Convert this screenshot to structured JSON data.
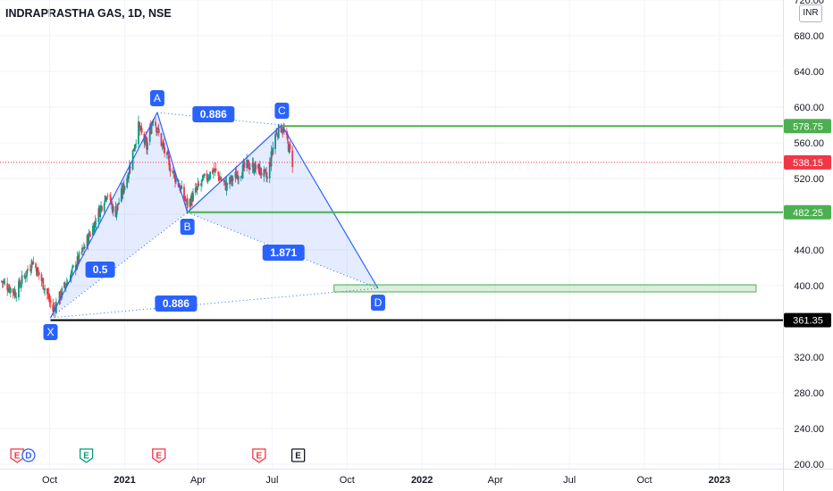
{
  "header": {
    "title": "INDRAPRASTHA GAS, 1D, NSE"
  },
  "currency_button": "INR",
  "chart_data": {
    "type": "candlestick",
    "y_axis": {
      "range": [
        195,
        720
      ],
      "ticks": [
        200,
        240,
        280,
        320,
        360,
        400,
        440,
        480,
        520,
        560,
        600,
        640,
        680,
        720
      ],
      "tick_labels": [
        "200.00",
        "240.00",
        "280.00",
        "320.00",
        "",
        "400.00",
        "440.00",
        "",
        "520.00",
        "560.00",
        "600.00",
        "640.00",
        "680.00",
        "720.00"
      ]
    },
    "x_axis": {
      "labels": [
        "Oct",
        "2021",
        "Apr",
        "Jul",
        "Oct",
        "2022",
        "Apr",
        "Jul",
        "Oct",
        "2023"
      ],
      "dates": [
        "2020-10-01",
        "2021-01-01",
        "2021-04-01",
        "2021-07-01",
        "2021-10-01",
        "2022-01-01",
        "2022-04-01",
        "2022-07-01",
        "2022-10-01",
        "2023-01-01"
      ],
      "range": [
        "2020-08-01",
        "2023-03-20"
      ]
    },
    "price_series_anchors": [
      {
        "date": "2020-08-03",
        "value": 405
      },
      {
        "date": "2020-08-20",
        "value": 392
      },
      {
        "date": "2020-09-10",
        "value": 428
      },
      {
        "date": "2020-09-25",
        "value": 398
      },
      {
        "date": "2020-10-05",
        "value": 372
      },
      {
        "date": "2020-10-20",
        "value": 400
      },
      {
        "date": "2020-11-10",
        "value": 438
      },
      {
        "date": "2020-11-25",
        "value": 470
      },
      {
        "date": "2020-12-10",
        "value": 505
      },
      {
        "date": "2020-12-20",
        "value": 480
      },
      {
        "date": "2021-01-05",
        "value": 525
      },
      {
        "date": "2021-01-18",
        "value": 578
      },
      {
        "date": "2021-01-28",
        "value": 555
      },
      {
        "date": "2021-02-05",
        "value": 590
      },
      {
        "date": "2021-02-15",
        "value": 560
      },
      {
        "date": "2021-02-25",
        "value": 535
      },
      {
        "date": "2021-03-10",
        "value": 510
      },
      {
        "date": "2021-03-19",
        "value": 490
      },
      {
        "date": "2021-04-05",
        "value": 515
      },
      {
        "date": "2021-04-20",
        "value": 530
      },
      {
        "date": "2021-05-05",
        "value": 512
      },
      {
        "date": "2021-05-20",
        "value": 525
      },
      {
        "date": "2021-06-01",
        "value": 535
      },
      {
        "date": "2021-06-15",
        "value": 530
      },
      {
        "date": "2021-06-25",
        "value": 520
      },
      {
        "date": "2021-07-05",
        "value": 570
      },
      {
        "date": "2021-07-13",
        "value": 578
      },
      {
        "date": "2021-07-20",
        "value": 560
      },
      {
        "date": "2021-07-26",
        "value": 538
      }
    ],
    "last_price": 538.15,
    "harmonic_pattern": {
      "points": [
        {
          "label": "X",
          "date": "2020-10-02",
          "value": 364
        },
        {
          "label": "A",
          "date": "2021-02-10",
          "value": 594
        },
        {
          "label": "B",
          "date": "2021-03-19",
          "value": 482
        },
        {
          "label": "C",
          "date": "2021-07-13",
          "value": 580
        },
        {
          "label": "D",
          "date": "2021-11-08",
          "value": 397
        }
      ],
      "ratios": [
        {
          "value": "0.5",
          "between": "XB",
          "date": "2020-12-02",
          "price": 418
        },
        {
          "value": "0.886",
          "between": "AC",
          "date": "2021-04-20",
          "price": 592
        },
        {
          "value": "1.871",
          "between": "BD",
          "date": "2021-07-15",
          "price": 437
        },
        {
          "value": "0.886",
          "between": "XD",
          "date": "2021-03-05",
          "price": 380
        }
      ]
    },
    "horizontal_levels": [
      {
        "value": 578.75,
        "label": "578.75",
        "color": "#4caf50",
        "from_date": "2021-07-13"
      },
      {
        "value": 482.25,
        "label": "482.25",
        "color": "#4caf50",
        "from_date": "2021-03-19"
      },
      {
        "value": 361.35,
        "label": "361.35",
        "color": "#000000",
        "from_date": "2020-10-02"
      }
    ],
    "current_price_label": {
      "value": 538.15,
      "label": "538.15",
      "color": "#f23645"
    },
    "target_zone": {
      "from_date": "2021-09-15",
      "to_date": "2023-02-15",
      "low": 393,
      "high": 401,
      "color": "#4caf50"
    },
    "events": [
      {
        "type": "E",
        "date": "2020-08-22",
        "color": "#f23645"
      },
      {
        "type": "D",
        "date": "2020-09-05",
        "color": "#2962ff"
      },
      {
        "type": "E",
        "date": "2020-11-15",
        "color": "#089981"
      },
      {
        "type": "E",
        "date": "2021-02-12",
        "color": "#f23645"
      },
      {
        "type": "E",
        "date": "2021-06-15",
        "color": "#f23645"
      },
      {
        "type": "E",
        "date": "2021-08-02",
        "color": "#131722"
      }
    ]
  }
}
